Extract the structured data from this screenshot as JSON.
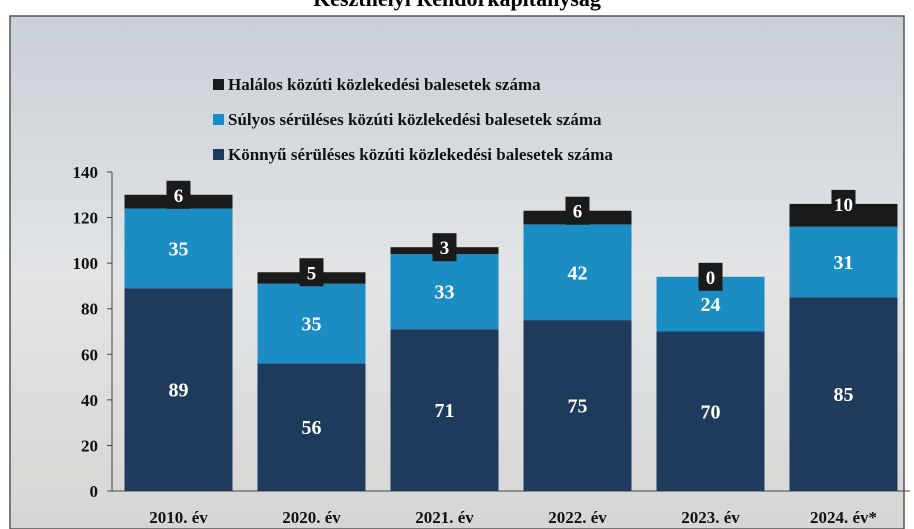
{
  "chart_data": {
    "type": "stacked_bar",
    "title": "Keszthelyi Rendőrkapitányság",
    "categories": [
      "2010. év",
      "2020. év",
      "2021. év",
      "2022. év",
      "2023. év",
      "2024. év*"
    ],
    "series": [
      {
        "name": "Könnyű sérüléses közúti közlekedési balesetek száma",
        "color": "#1e3a5c",
        "values": [
          89,
          56,
          71,
          75,
          70,
          85
        ]
      },
      {
        "name": "Súlyos sérüléses közúti közlekedési balesetek száma",
        "color": "#1b8dc2",
        "values": [
          35,
          35,
          33,
          42,
          24,
          31
        ]
      },
      {
        "name": "Halálos közúti közlekedési balesetek száma",
        "color": "#1a1a1a",
        "values": [
          6,
          5,
          3,
          6,
          0,
          10
        ]
      }
    ],
    "ylim": [
      0,
      140
    ],
    "yticks": [
      0,
      20,
      40,
      60,
      80,
      100,
      120,
      140
    ]
  }
}
